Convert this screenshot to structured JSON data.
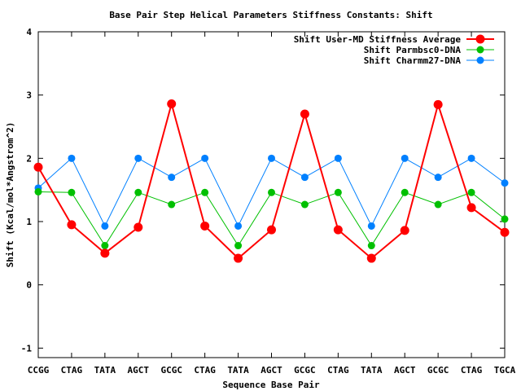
{
  "chart_data": {
    "type": "line",
    "title": "Base Pair Step Helical Parameters Stiffness Constants: Shift",
    "xlabel": "Sequence Base Pair",
    "ylabel": "Shift (Kcal/mol*Angstrom^2)",
    "ylim": [
      -1.15,
      4
    ],
    "yticks": [
      -1,
      0,
      1,
      2,
      3,
      4
    ],
    "categories": [
      "CCGG",
      "CTAG",
      "TATA",
      "AGCT",
      "GCGC",
      "CTAG",
      "TATA",
      "AGCT",
      "GCGC",
      "CTAG",
      "TATA",
      "AGCT",
      "GCGC",
      "CTAG",
      "TGCA"
    ],
    "legend_position": "top-right",
    "grid": false,
    "series": [
      {
        "name": "Shift User-MD Stiffness Average",
        "color": "#ff0000",
        "values": [
          1.86,
          0.95,
          0.5,
          0.91,
          2.86,
          0.93,
          0.42,
          0.87,
          2.7,
          0.87,
          0.42,
          0.86,
          2.85,
          1.22,
          0.83
        ]
      },
      {
        "name": "Shift Parmbsc0-DNA",
        "color": "#00c000",
        "values": [
          1.47,
          1.46,
          0.62,
          1.46,
          1.27,
          1.46,
          0.62,
          1.46,
          1.27,
          1.46,
          0.62,
          1.46,
          1.27,
          1.46,
          1.04
        ]
      },
      {
        "name": "Shift Charmm27-DNA",
        "color": "#0080ff",
        "values": [
          1.53,
          2.0,
          0.93,
          2.0,
          1.7,
          2.0,
          0.93,
          2.0,
          1.7,
          2.0,
          0.93,
          2.0,
          1.7,
          2.0,
          1.61
        ]
      }
    ]
  }
}
